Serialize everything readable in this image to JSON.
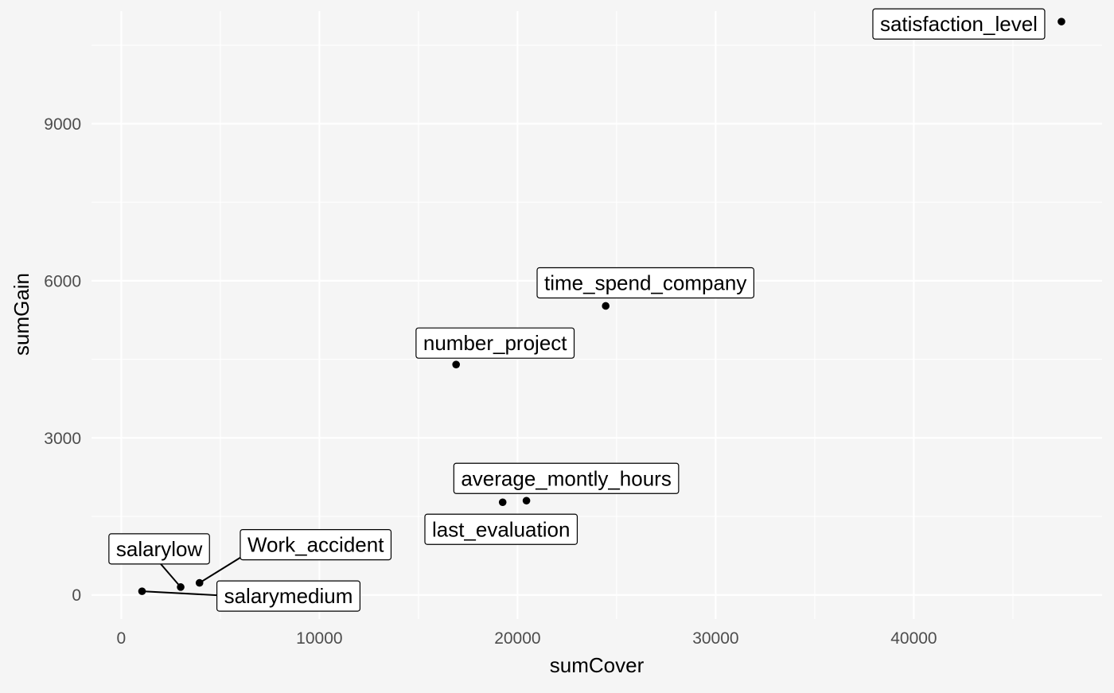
{
  "chart_data": {
    "type": "scatter",
    "title": "",
    "xlabel": "sumCover",
    "ylabel": "sumGain",
    "xlim": [
      -1500,
      49500
    ],
    "ylim": [
      -460,
      11150
    ],
    "x_ticks": [
      0,
      10000,
      20000,
      30000,
      40000
    ],
    "y_ticks": [
      0,
      3000,
      6000,
      9000
    ],
    "x_tick_labels": [
      "0",
      "10000",
      "20000",
      "30000",
      "40000"
    ],
    "y_tick_labels": [
      "0",
      "3000",
      "6000",
      "9000"
    ],
    "grid": true,
    "legend": "none",
    "points": [
      {
        "label": "satisfaction_level",
        "x": 47450,
        "y": 10950
      },
      {
        "label": "time_spend_company",
        "x": 24450,
        "y": 5520
      },
      {
        "label": "number_project",
        "x": 16900,
        "y": 4400
      },
      {
        "label": "average_montly_hours",
        "x": 20450,
        "y": 1800
      },
      {
        "label": "last_evaluation",
        "x": 19250,
        "y": 1770
      },
      {
        "label": "salarylow",
        "x": 3000,
        "y": 150
      },
      {
        "label": "Work_accident",
        "x": 3950,
        "y": 230
      },
      {
        "label": "salarymedium",
        "x": 1050,
        "y": 70
      }
    ]
  },
  "colors": {
    "background": "#f5f5f5",
    "grid": "#ffffff",
    "point": "#000000",
    "label_fill": "#ffffff",
    "label_border": "#000000"
  }
}
